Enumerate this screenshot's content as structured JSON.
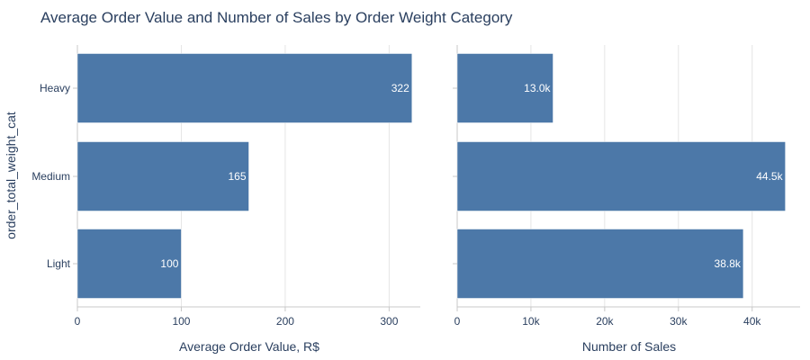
{
  "chart_data": [
    {
      "type": "bar",
      "orientation": "horizontal",
      "title": "Average Order Value and Number of Sales by Order Weight Category",
      "ylabel": "order_total_weight_cat",
      "xlabel": "Average Order Value, R$",
      "categories": [
        "Heavy",
        "Medium",
        "Light"
      ],
      "values": [
        322,
        165,
        100
      ],
      "data_labels": [
        "322",
        "165",
        "100"
      ],
      "xlim": [
        0,
        330
      ],
      "xticks": [
        0,
        100,
        200,
        300
      ],
      "xtick_labels": [
        "0",
        "100",
        "200",
        "300"
      ],
      "bar_color": "#4c78a8",
      "grid": true
    },
    {
      "type": "bar",
      "orientation": "horizontal",
      "xlabel": "Number of Sales",
      "categories": [
        "Heavy",
        "Medium",
        "Light"
      ],
      "values": [
        13000,
        44500,
        38800
      ],
      "data_labels": [
        "13.0k",
        "44.5k",
        "38.8k"
      ],
      "xlim": [
        0,
        46500
      ],
      "xticks": [
        0,
        10000,
        20000,
        30000,
        40000
      ],
      "xtick_labels": [
        "0",
        "10k",
        "20k",
        "30k",
        "40k"
      ],
      "bar_color": "#4c78a8",
      "grid": true
    }
  ],
  "colors": {
    "bar": "#4c78a8",
    "text": "#2a3f5f",
    "grid": "#e5e5e5",
    "axis": "#c8c8c8"
  }
}
